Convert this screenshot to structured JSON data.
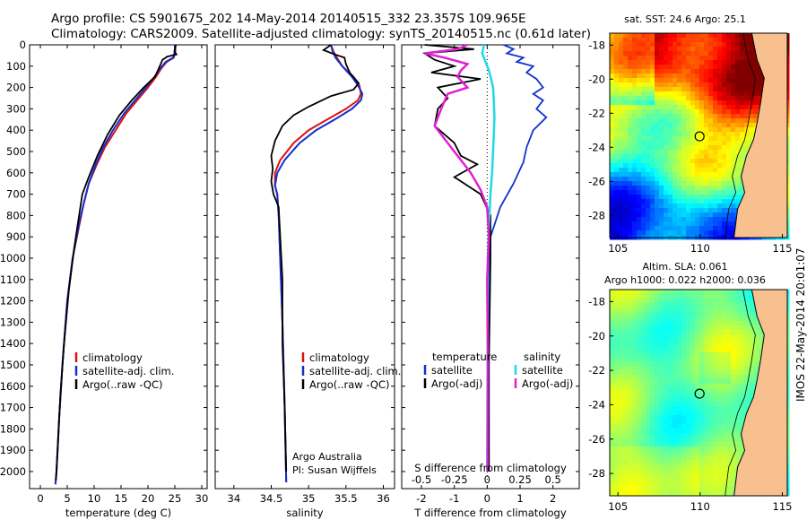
{
  "header": {
    "line1": "Argo profile: CS 5901675_202 14-May-2014 20140515_332 23.357S 109.965E",
    "line2": "Climatology: CARS2009. Satellite-adjusted climatology: synTS_20140515.nc (0.61d later)"
  },
  "credit": {
    "org": "Argo Australia",
    "pi": "PI: Susan Wijffels"
  },
  "footer_stamp": "IMOS 22-May-2014 20:01:07",
  "colors": {
    "clim": "#e01010",
    "sat": "#1030d0",
    "argo": "#000000",
    "sal_sat": "#20d8e8",
    "sal_argo": "#e020d0"
  },
  "chart_data": [
    {
      "type": "line",
      "id": "temperature",
      "xlabel": "temperature (deg C)",
      "ylabel": "",
      "xlim": [
        -2,
        31
      ],
      "ylim": [
        2080,
        0
      ],
      "xticks": [
        0,
        5,
        10,
        15,
        20,
        25,
        30
      ],
      "yticks": [
        0,
        100,
        200,
        300,
        400,
        500,
        600,
        700,
        800,
        900,
        1000,
        1100,
        1200,
        1300,
        1400,
        1500,
        1600,
        1700,
        1800,
        1900,
        2000
      ],
      "legend": [
        "climatology",
        "satellite-adj. clim.",
        "Argo(..raw -QC)"
      ],
      "series": [
        {
          "name": "climatology",
          "color": "#e01010",
          "points": [
            [
              25.1,
              0
            ],
            [
              25.1,
              30
            ],
            [
              24.8,
              60
            ],
            [
              23.5,
              80
            ],
            [
              22.5,
              110
            ],
            [
              21.5,
              150
            ],
            [
              20,
              200
            ],
            [
              18,
              260
            ],
            [
              16,
              320
            ],
            [
              14,
              400
            ],
            [
              12,
              480
            ],
            [
              10.5,
              560
            ],
            [
              9,
              650
            ],
            [
              8,
              750
            ],
            [
              7.2,
              850
            ],
            [
              6,
              1000
            ],
            [
              5,
              1200
            ],
            [
              4.1,
              1500
            ],
            [
              3.5,
              1750
            ],
            [
              3,
              2000
            ],
            [
              2.8,
              2060
            ]
          ]
        },
        {
          "name": "satellite-adj. clim.",
          "color": "#1030d0",
          "points": [
            [
              25,
              0
            ],
            [
              25,
              30
            ],
            [
              24.7,
              60
            ],
            [
              23.3,
              80
            ],
            [
              22.3,
              110
            ],
            [
              21.2,
              150
            ],
            [
              19.6,
              200
            ],
            [
              17.6,
              260
            ],
            [
              15.6,
              320
            ],
            [
              13.5,
              400
            ],
            [
              11.7,
              480
            ],
            [
              10.3,
              560
            ],
            [
              9,
              650
            ],
            [
              8,
              750
            ],
            [
              7.1,
              850
            ],
            [
              6,
              1000
            ],
            [
              5,
              1200
            ],
            [
              4.1,
              1500
            ],
            [
              3.5,
              1750
            ],
            [
              3,
              2000
            ],
            [
              2.8,
              2060
            ]
          ]
        },
        {
          "name": "Argo(..raw -QC)",
          "color": "#000000",
          "points": [
            [
              25.2,
              0
            ],
            [
              24.9,
              30
            ],
            [
              25.3,
              45
            ],
            [
              23.6,
              55
            ],
            [
              22.7,
              70
            ],
            [
              22.2,
              100
            ],
            [
              21.3,
              150
            ],
            [
              19.2,
              200
            ],
            [
              17,
              260
            ],
            [
              14.7,
              330
            ],
            [
              12.5,
              420
            ],
            [
              10.6,
              520
            ],
            [
              9,
              620
            ],
            [
              7.8,
              700
            ],
            [
              7.2,
              800
            ],
            [
              6.3,
              950
            ],
            [
              5.3,
              1150
            ],
            [
              4.4,
              1400
            ],
            [
              3.7,
              1650
            ],
            [
              3.2,
              1900
            ],
            [
              2.9,
              2040
            ]
          ]
        }
      ]
    },
    {
      "type": "line",
      "id": "salinity",
      "xlabel": "salinity",
      "ylabel": "",
      "xlim": [
        33.75,
        36.15
      ],
      "ylim": [
        2080,
        0
      ],
      "xticks": [
        34,
        34.5,
        35,
        35.5,
        36
      ],
      "legend": [
        "climatology",
        "satellite-adj. clim.",
        "Argo(..raw -QC)"
      ],
      "series": [
        {
          "name": "climatology",
          "color": "#e01010",
          "points": [
            [
              35.3,
              0
            ],
            [
              35.33,
              30
            ],
            [
              35.38,
              60
            ],
            [
              35.45,
              100
            ],
            [
              35.6,
              150
            ],
            [
              35.68,
              190
            ],
            [
              35.7,
              230
            ],
            [
              35.66,
              260
            ],
            [
              35.5,
              300
            ],
            [
              35.25,
              350
            ],
            [
              35.0,
              400
            ],
            [
              34.8,
              460
            ],
            [
              34.62,
              540
            ],
            [
              34.55,
              600
            ],
            [
              34.55,
              660
            ],
            [
              34.58,
              700
            ],
            [
              34.6,
              800
            ],
            [
              34.62,
              1000
            ],
            [
              34.65,
              1300
            ],
            [
              34.68,
              1700
            ],
            [
              34.7,
              2050
            ]
          ]
        },
        {
          "name": "satellite-adj. clim.",
          "color": "#1030d0",
          "points": [
            [
              35.3,
              0
            ],
            [
              35.32,
              30
            ],
            [
              35.36,
              60
            ],
            [
              35.45,
              100
            ],
            [
              35.58,
              150
            ],
            [
              35.66,
              190
            ],
            [
              35.72,
              230
            ],
            [
              35.7,
              260
            ],
            [
              35.58,
              300
            ],
            [
              35.35,
              350
            ],
            [
              35.1,
              400
            ],
            [
              34.88,
              460
            ],
            [
              34.68,
              540
            ],
            [
              34.58,
              600
            ],
            [
              34.55,
              660
            ],
            [
              34.58,
              700
            ],
            [
              34.6,
              800
            ],
            [
              34.62,
              1000
            ],
            [
              34.65,
              1300
            ],
            [
              34.68,
              1700
            ],
            [
              34.7,
              2050
            ]
          ]
        },
        {
          "name": "Argo(..raw -QC)",
          "color": "#000000",
          "points": [
            [
              35.3,
              0
            ],
            [
              35.2,
              25
            ],
            [
              35.35,
              45
            ],
            [
              35.48,
              60
            ],
            [
              35.5,
              90
            ],
            [
              35.55,
              130
            ],
            [
              35.67,
              180
            ],
            [
              35.6,
              210
            ],
            [
              35.3,
              240
            ],
            [
              35.0,
              290
            ],
            [
              34.8,
              330
            ],
            [
              34.65,
              380
            ],
            [
              34.55,
              450
            ],
            [
              34.5,
              520
            ],
            [
              34.52,
              580
            ],
            [
              34.5,
              640
            ],
            [
              34.53,
              700
            ],
            [
              34.6,
              760
            ],
            [
              34.62,
              900
            ],
            [
              34.65,
              1100
            ],
            [
              34.65,
              1400
            ],
            [
              34.68,
              1700
            ],
            [
              34.7,
              2000
            ]
          ]
        }
      ]
    },
    {
      "type": "line",
      "id": "difference",
      "xlabel": "T difference from climatology",
      "xlabel_top": "S difference from climatology",
      "xlim": [
        -2.6,
        2.8
      ],
      "ylim": [
        2080,
        0
      ],
      "xticks": [
        -2,
        -1,
        0,
        1,
        2
      ],
      "xticks_top": [
        -0.5,
        -0.25,
        0,
        0.25,
        0.5
      ],
      "legend_t_title": "temperature",
      "legend_s_title": "salinity",
      "legend_t": [
        "satellite",
        "Argo(-adj)"
      ],
      "legend_s": [
        "satellite",
        "Argo(-adj)"
      ],
      "series": [
        {
          "name": "satellite",
          "group": "temperature",
          "color": "#1030d0",
          "points": [
            [
              0.5,
              0
            ],
            [
              0.8,
              20
            ],
            [
              0.6,
              40
            ],
            [
              1.1,
              60
            ],
            [
              0.9,
              80
            ],
            [
              1.4,
              100
            ],
            [
              1.2,
              130
            ],
            [
              1.5,
              160
            ],
            [
              1.7,
              200
            ],
            [
              1.4,
              230
            ],
            [
              1.7,
              260
            ],
            [
              1.5,
              300
            ],
            [
              1.8,
              340
            ],
            [
              1.4,
              400
            ],
            [
              1.2,
              480
            ],
            [
              1.1,
              550
            ],
            [
              0.8,
              650
            ],
            [
              0.4,
              760
            ],
            [
              0.1,
              900
            ],
            [
              0.05,
              1100
            ],
            [
              0.05,
              1500
            ],
            [
              0.05,
              2000
            ]
          ]
        },
        {
          "name": "Argo(-adj)",
          "group": "temperature",
          "color": "#000000",
          "points": [
            [
              -1.9,
              0
            ],
            [
              -0.4,
              20
            ],
            [
              -1.9,
              40
            ],
            [
              -1.6,
              70
            ],
            [
              -1.0,
              100
            ],
            [
              -1.7,
              130
            ],
            [
              -0.2,
              160
            ],
            [
              -1.5,
              200
            ],
            [
              -1.2,
              250
            ],
            [
              -1.5,
              300
            ],
            [
              -1.6,
              380
            ],
            [
              -1.0,
              460
            ],
            [
              -0.8,
              520
            ],
            [
              -0.3,
              560
            ],
            [
              -1.0,
              620
            ],
            [
              -0.2,
              700
            ],
            [
              0.1,
              800
            ],
            [
              0.1,
              1000
            ],
            [
              0.05,
              1500
            ],
            [
              0.05,
              2000
            ]
          ]
        },
        {
          "name": "satellite",
          "group": "salinity",
          "color": "#20d8e8",
          "points": [
            [
              -0.1,
              0
            ],
            [
              -0.15,
              40
            ],
            [
              -0.05,
              80
            ],
            [
              0.05,
              120
            ],
            [
              0.12,
              160
            ],
            [
              0.18,
              200
            ],
            [
              0.2,
              260
            ],
            [
              0.22,
              340
            ],
            [
              0.2,
              420
            ],
            [
              0.18,
              500
            ],
            [
              0.15,
              600
            ],
            [
              0.1,
              700
            ],
            [
              0.05,
              850
            ],
            [
              0.02,
              1000
            ],
            [
              0.01,
              1500
            ],
            [
              0.0,
              2000
            ]
          ]
        },
        {
          "name": "Argo(-adj)",
          "group": "salinity",
          "color": "#e020d0",
          "points": [
            [
              -0.6,
              0
            ],
            [
              -0.9,
              20
            ],
            [
              -1.9,
              40
            ],
            [
              -1.3,
              60
            ],
            [
              -0.6,
              90
            ],
            [
              -0.8,
              120
            ],
            [
              -0.9,
              150
            ],
            [
              -0.6,
              200
            ],
            [
              -1.2,
              230
            ],
            [
              -1.4,
              300
            ],
            [
              -1.6,
              380
            ],
            [
              -1.2,
              460
            ],
            [
              -0.8,
              540
            ],
            [
              -0.5,
              600
            ],
            [
              -0.2,
              680
            ],
            [
              0.0,
              760
            ],
            [
              0.05,
              900
            ],
            [
              0.0,
              1100
            ],
            [
              0.02,
              1500
            ],
            [
              0.01,
              2000
            ]
          ]
        }
      ]
    },
    {
      "type": "heatmap",
      "id": "sst_map",
      "title": "sat. SST: 24.6 Argo: 25.1",
      "xlim": [
        104.5,
        115.3
      ],
      "ylim": [
        -29.3,
        -17.3
      ],
      "xticks": [
        105,
        110,
        115
      ],
      "yticks": [
        -18,
        -20,
        -22,
        -24,
        -26,
        -28
      ],
      "marker": [
        109.965,
        -23.357
      ]
    },
    {
      "type": "heatmap",
      "id": "sla_map",
      "title": "Altim. SLA: 0.061",
      "subtitle": "Argo h1000: 0.022 h2000: 0.036",
      "xlim": [
        104.5,
        115.3
      ],
      "ylim": [
        -29.3,
        -17.3
      ],
      "xticks": [
        105,
        110,
        115
      ],
      "yticks": [
        -18,
        -20,
        -22,
        -24,
        -26,
        -28
      ],
      "marker": [
        109.965,
        -23.357
      ]
    }
  ]
}
